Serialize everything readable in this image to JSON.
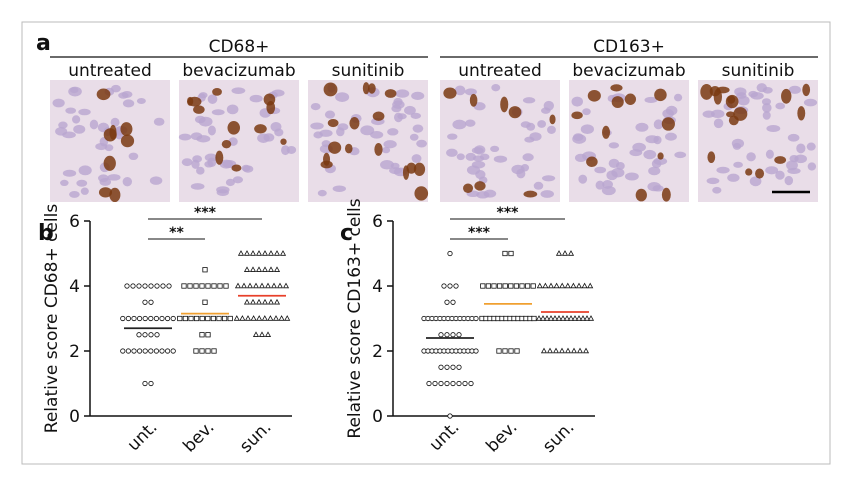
{
  "panel_a": {
    "label": "a",
    "groups": [
      {
        "title": "CD68+",
        "images": [
          "untreated",
          "bevacizumab",
          "sunitinib"
        ]
      },
      {
        "title": "CD163+",
        "images": [
          "untreated",
          "bevacizumab",
          "sunitinib"
        ]
      }
    ]
  },
  "chart_data": [
    {
      "type": "dot",
      "panel": "b",
      "y_label": "Relative score CD68+ cells",
      "ylim": [
        0,
        6
      ],
      "yticks": [
        0,
        2,
        4,
        6
      ],
      "annotations": [
        "***",
        "**"
      ],
      "groups": [
        {
          "name": "unt.",
          "marker": "circle",
          "mean": 2.7,
          "mean_color": "#222222",
          "values": [
            1,
            1,
            2,
            2,
            2,
            2,
            2,
            2,
            2,
            2,
            2,
            2,
            2.5,
            2.5,
            2.5,
            2.5,
            3,
            3,
            3,
            3,
            3,
            3,
            3,
            3,
            3,
            3,
            3.5,
            3.5,
            4,
            4,
            4,
            4,
            4,
            4,
            4,
            4
          ]
        },
        {
          "name": "bev.",
          "marker": "square",
          "mean": 3.15,
          "mean_color": "#f0a030",
          "values": [
            2,
            2,
            2,
            2,
            2.5,
            2.5,
            3,
            3,
            3,
            3,
            3,
            3,
            3,
            3,
            3,
            3,
            3.5,
            4,
            4,
            4,
            4,
            4,
            4,
            4,
            4,
            4.5
          ]
        },
        {
          "name": "sun.",
          "marker": "triangle",
          "mean": 3.7,
          "mean_color": "#e8402a",
          "values": [
            2.5,
            2.5,
            2.5,
            3,
            3,
            3,
            3,
            3,
            3,
            3,
            3,
            3,
            3,
            3.5,
            3.5,
            3.5,
            3.5,
            3.5,
            3.5,
            4,
            4,
            4,
            4,
            4,
            4,
            4,
            4,
            4,
            4.5,
            4.5,
            4.5,
            4.5,
            4.5,
            4.5,
            5,
            5,
            5,
            5,
            5,
            5,
            5,
            5
          ]
        }
      ]
    },
    {
      "type": "dot",
      "panel": "c",
      "y_label": "Relative score CD163+ cells",
      "ylim": [
        0,
        6
      ],
      "yticks": [
        0,
        2,
        4,
        6
      ],
      "annotations": [
        "***",
        "***"
      ],
      "groups": [
        {
          "name": "unt.",
          "marker": "circle",
          "mean": 2.4,
          "mean_color": "#222222",
          "values": [
            0,
            1,
            1,
            1,
            1,
            1,
            1,
            1,
            1,
            1.5,
            1.5,
            1.5,
            1.5,
            2,
            2,
            2,
            2,
            2,
            2,
            2,
            2,
            2,
            2,
            2,
            2,
            2,
            2,
            2.5,
            2.5,
            2.5,
            2.5,
            3,
            3,
            3,
            3,
            3,
            3,
            3,
            3,
            3,
            3,
            3,
            3,
            3,
            3,
            3.5,
            3.5,
            4,
            4,
            4,
            5
          ]
        },
        {
          "name": "bev.",
          "marker": "square",
          "mean": 3.45,
          "mean_color": "#f0a030",
          "values": [
            2,
            2,
            2,
            2,
            3,
            3,
            3,
            3,
            3,
            3,
            3,
            3,
            3,
            3,
            3,
            3,
            3,
            3,
            4,
            4,
            4,
            4,
            4,
            4,
            4,
            4,
            4,
            4,
            5,
            5
          ]
        },
        {
          "name": "sun.",
          "marker": "triangle",
          "mean": 3.2,
          "mean_color": "#e8402a",
          "values": [
            2,
            2,
            2,
            2,
            2,
            2,
            2,
            2,
            3,
            3,
            3,
            3,
            3,
            3,
            3,
            3,
            3,
            3,
            3,
            3,
            3,
            3,
            4,
            4,
            4,
            4,
            4,
            4,
            4,
            4,
            4,
            4,
            5,
            5,
            5
          ]
        }
      ]
    }
  ]
}
